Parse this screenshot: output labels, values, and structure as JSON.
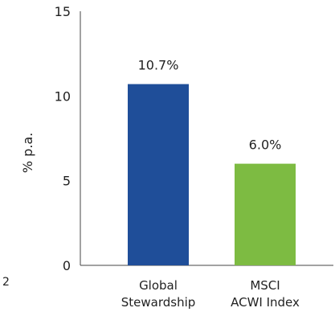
{
  "chart_data": {
    "type": "bar",
    "title": "",
    "xlabel": "",
    "ylabel": "% p.a.",
    "ylim": [
      0,
      15
    ],
    "yticks": [
      0,
      5,
      10,
      15
    ],
    "grid": false,
    "categories": [
      [
        "Global",
        "Stewardship"
      ],
      [
        "MSCI",
        "ACWI Index"
      ]
    ],
    "values": [
      10.7,
      6.0
    ],
    "data_labels": [
      "10.7%",
      "6.0%"
    ],
    "colors": [
      "#1f4e99",
      "#7dbb42"
    ]
  },
  "stray_text": "2",
  "colors": {
    "axis": "#444444",
    "text": "#222222"
  }
}
